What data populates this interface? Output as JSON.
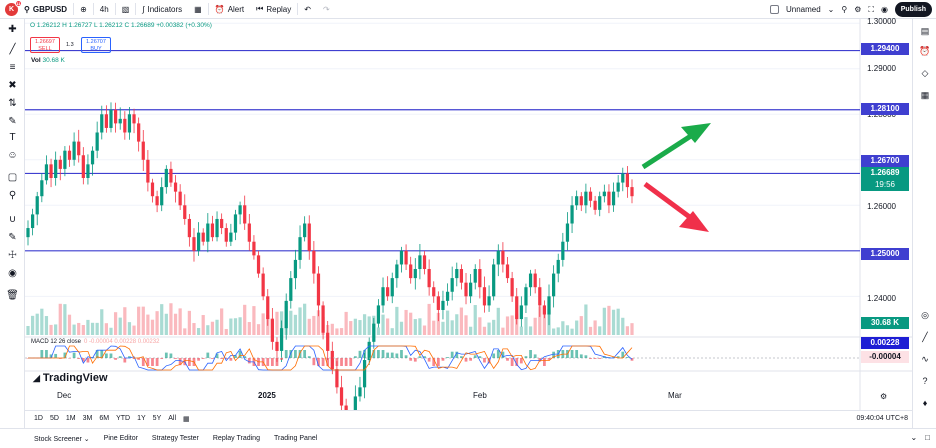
{
  "topbar": {
    "avatar_letter": "K",
    "badge": "11",
    "symbol": "GBPUSD",
    "interval": "4h",
    "indicators": "Indicators",
    "alert": "Alert",
    "replay": "Replay",
    "layout_name": "Unnamed",
    "publish": "Publish"
  },
  "legend": {
    "ohlc": "O 1.26212 H 1.26727 L 1.26212 C 1.26689 +0.00382 (+0.30%)",
    "sell_price": "1.26697",
    "sell_label": "SELL",
    "spread": "1.3",
    "buy_price": "1.26707",
    "buy_label": "BUY",
    "vol_label": "Vol",
    "vol_value": "30.68 K",
    "macd_label": "MACD 12 26 close",
    "macd_values": "0 -0.00004   0.00228   0.00232"
  },
  "brand": "TradingView",
  "price_axis": {
    "ticks": [
      "1.30000",
      "1.29000",
      "1.28000",
      "1.26000",
      "1.24000"
    ],
    "levels": [
      "1.29400",
      "1.28100",
      "1.26700",
      "1.25000"
    ],
    "current_price": "1.26689",
    "countdown": "19:56",
    "volume_label": "30.68 K",
    "macd_high": "0.00228",
    "macd_low": "-0.00004"
  },
  "time_axis": [
    "Dec",
    "2025",
    "Feb",
    "Mar"
  ],
  "timeframes": [
    "1D",
    "5D",
    "1M",
    "3M",
    "6M",
    "YTD",
    "1Y",
    "5Y",
    "All"
  ],
  "clock": "09:40:04 UTC+8",
  "bottom_tabs": [
    "Stock Screener",
    "Pine Editor",
    "Strategy Tester",
    "Replay Trading",
    "Trading Panel"
  ],
  "colors": {
    "up": "#089981",
    "down": "#f23645",
    "level": "#3f3fd0",
    "arrow_up": "#1aab4a",
    "arrow_down": "#f0304a"
  },
  "chart_data": {
    "type": "candlestick",
    "symbol": "GBPUSD",
    "interval": "4h",
    "horizontal_levels": [
      1.294,
      1.281,
      1.267,
      1.25
    ],
    "close_series": [
      1.255,
      1.258,
      1.262,
      1.2655,
      1.269,
      1.266,
      1.27,
      1.268,
      1.272,
      1.27,
      1.274,
      1.271,
      1.266,
      1.269,
      1.272,
      1.276,
      1.28,
      1.277,
      1.281,
      1.278,
      1.279,
      1.276,
      1.28,
      1.278,
      1.274,
      1.27,
      1.265,
      1.262,
      1.26,
      1.264,
      1.268,
      1.265,
      1.263,
      1.26,
      1.257,
      1.253,
      1.25,
      1.254,
      1.252,
      1.256,
      1.253,
      1.257,
      1.255,
      1.252,
      1.254,
      1.258,
      1.26,
      1.256,
      1.252,
      1.249,
      1.245,
      1.24,
      1.235,
      1.23,
      1.228,
      1.233,
      1.239,
      1.244,
      1.248,
      1.253,
      1.256,
      1.25,
      1.245,
      1.238,
      1.232,
      1.228,
      1.224,
      1.22,
      1.216,
      1.212,
      1.211,
      1.218,
      1.22,
      1.226,
      1.23,
      1.234,
      1.238,
      1.242,
      1.24,
      1.244,
      1.247,
      1.25,
      1.247,
      1.244,
      1.246,
      1.249,
      1.246,
      1.242,
      1.24,
      1.237,
      1.239,
      1.241,
      1.244,
      1.246,
      1.243,
      1.24,
      1.243,
      1.246,
      1.242,
      1.238,
      1.24,
      1.247,
      1.25,
      1.247,
      1.244,
      1.24,
      1.235,
      1.238,
      1.242,
      1.245,
      1.242,
      1.238,
      1.236,
      1.24,
      1.245,
      1.248,
      1.252,
      1.256,
      1.26,
      1.262,
      1.26,
      1.263,
      1.261,
      1.259,
      1.262,
      1.263,
      1.26,
      1.263,
      1.265,
      1.267,
      1.264,
      1.262
    ],
    "volume_label": "30.68 K"
  }
}
